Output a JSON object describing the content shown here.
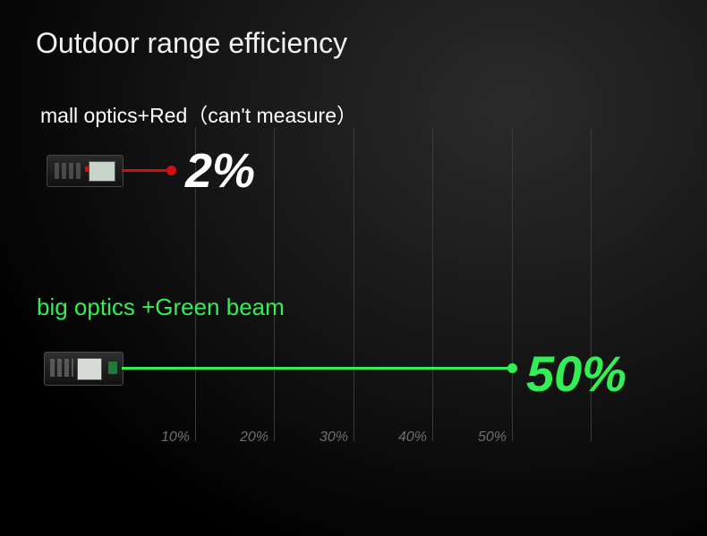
{
  "title": "Outdoor range efficiency",
  "chart_data": {
    "type": "bar",
    "orientation": "horizontal",
    "title": "Outdoor range efficiency",
    "categories": [
      "mall optics+Red（can't measure）",
      "big optics +Green beam"
    ],
    "values": [
      2,
      50
    ],
    "value_labels": [
      "2%",
      "50%"
    ],
    "tick_labels": [
      "10%",
      "20%",
      "30%",
      "40%",
      "50%"
    ],
    "xlim": [
      0,
      60
    ],
    "grid": true,
    "colors": {
      "red": "#d01010",
      "green": "#33ee55"
    }
  },
  "icons": [
    "rangefinder-red-icon",
    "rangefinder-green-icon"
  ]
}
